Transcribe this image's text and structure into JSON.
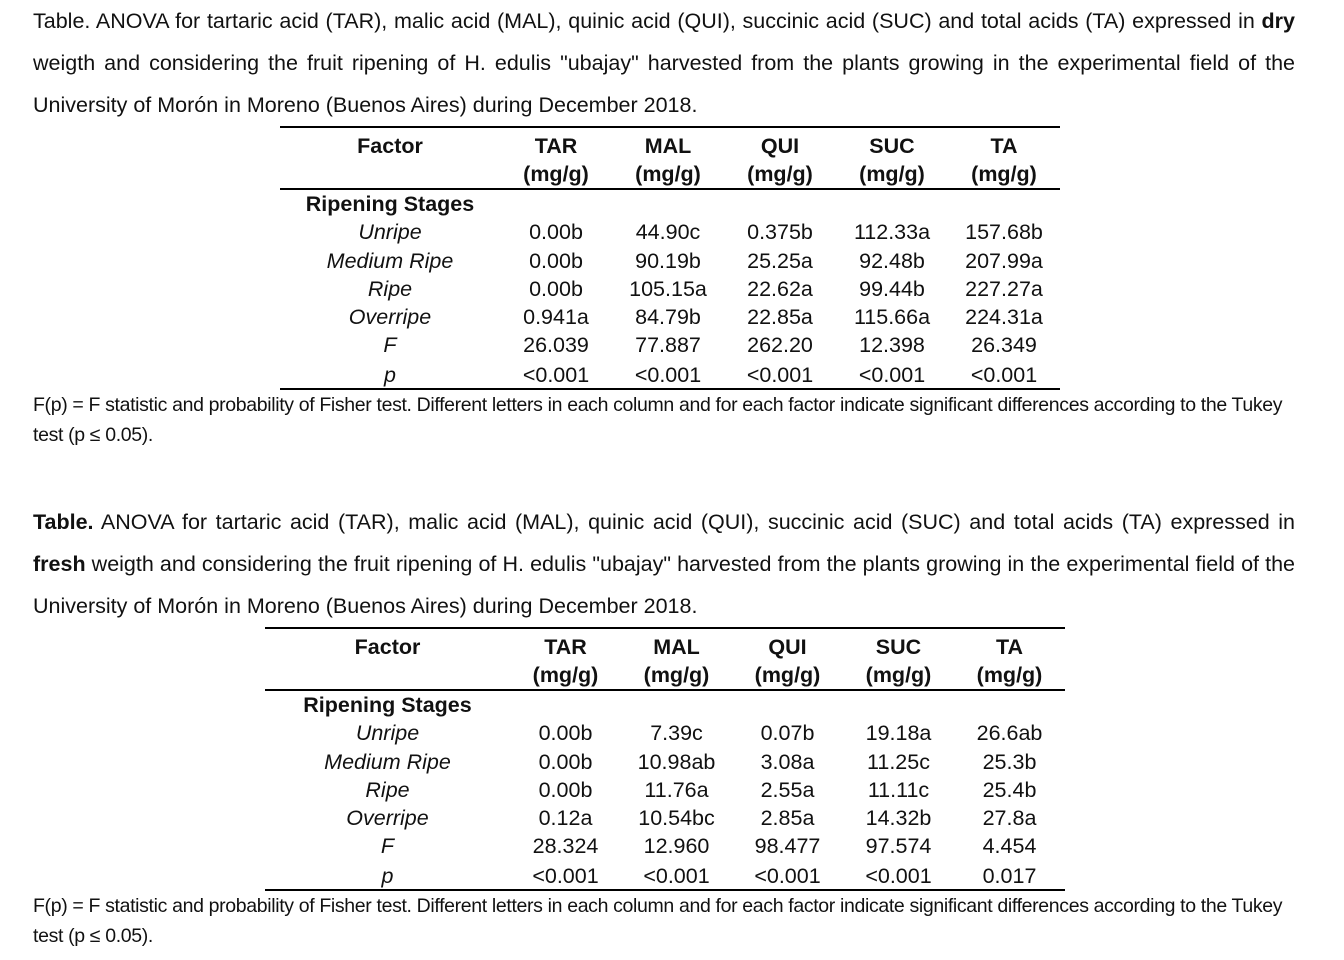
{
  "tables": [
    {
      "caption": {
        "prefix": "Table.",
        "text_before": " ANOVA for tartaric acid (TAR), malic acid (MAL), quinic acid (QUI), succinic acid (SUC) and total acids (TA) expressed in ",
        "emphasis": "dry",
        "text_after": " weigth and considering the fruit ripening of H. edulis \"ubajay\" harvested from the plants growing in the experimental field of the University of Morón in Moreno (Buenos Aires) during December 2018."
      },
      "header": {
        "factor": "Factor",
        "columns": [
          {
            "name": "TAR",
            "unit": "(mg/g)"
          },
          {
            "name": "MAL",
            "unit": "(mg/g)"
          },
          {
            "name": "QUI",
            "unit": "(mg/g)"
          },
          {
            "name": "SUC",
            "unit": "(mg/g)"
          },
          {
            "name": "TA",
            "unit": "(mg/g)"
          }
        ]
      },
      "group_label": "Ripening Stages",
      "rows": [
        {
          "label": "Unripe",
          "values": [
            "0.00b",
            "44.90c",
            "0.375b",
            "112.33a",
            "157.68b"
          ]
        },
        {
          "label": "Medium Ripe",
          "values": [
            "0.00b",
            "90.19b",
            "25.25a",
            "92.48b",
            "207.99a"
          ]
        },
        {
          "label": "Ripe",
          "values": [
            "0.00b",
            "105.15a",
            "22.62a",
            "99.44b",
            "227.27a"
          ]
        },
        {
          "label": "Overripe",
          "values": [
            "0.941a",
            "84.79b",
            "22.85a",
            "115.66a",
            "224.31a"
          ]
        },
        {
          "label": "F",
          "values": [
            "26.039",
            "77.887",
            "262.20",
            "12.398",
            "26.349"
          ]
        },
        {
          "label": "p",
          "values": [
            "<0.001",
            "<0.001",
            "<0.001",
            "<0.001",
            "<0.001"
          ]
        }
      ],
      "footnote": "F(p) = F statistic and probability of Fisher test. Different letters in each column and for each factor indicate significant differences according to the Tukey test (p ≤ 0.05)."
    },
    {
      "caption": {
        "prefix": "Table.",
        "text_before": " ANOVA for tartaric acid (TAR), malic acid (MAL), quinic acid (QUI), succinic acid (SUC) and total acids (TA) expressed in ",
        "emphasis": "fresh",
        "text_after": " weigth and considering the fruit ripening of H. edulis \"ubajay\" harvested from the plants growing in the experimental field of the University of Morón in Moreno (Buenos Aires) during December 2018."
      },
      "header": {
        "factor": "Factor",
        "columns": [
          {
            "name": "TAR",
            "unit": "(mg/g)"
          },
          {
            "name": "MAL",
            "unit": "(mg/g)"
          },
          {
            "name": "QUI",
            "unit": "(mg/g)"
          },
          {
            "name": "SUC",
            "unit": "(mg/g)"
          },
          {
            "name": "TA",
            "unit": "(mg/g)"
          }
        ]
      },
      "group_label": "Ripening Stages",
      "rows": [
        {
          "label": "Unripe",
          "values": [
            "0.00b",
            "7.39c",
            "0.07b",
            "19.18a",
            "26.6ab"
          ]
        },
        {
          "label": "Medium Ripe",
          "values": [
            "0.00b",
            "10.98ab",
            "3.08a",
            "11.25c",
            "25.3b"
          ]
        },
        {
          "label": "Ripe",
          "values": [
            "0.00b",
            "11.76a",
            "2.55a",
            "11.11c",
            "25.4b"
          ]
        },
        {
          "label": "Overripe",
          "values": [
            "0.12a",
            "10.54bc",
            "2.85a",
            "14.32b",
            "27.8a"
          ]
        },
        {
          "label": "F",
          "values": [
            "28.324",
            "12.960",
            "98.477",
            "97.574",
            "4.454"
          ]
        },
        {
          "label": "p",
          "values": [
            "<0.001",
            "<0.001",
            "<0.001",
            "<0.001",
            "0.017"
          ]
        }
      ],
      "footnote": "F(p) = F statistic and probability of Fisher test. Different letters in each column and for each factor indicate significant differences according to the Tukey test (p ≤ 0.05)."
    }
  ]
}
